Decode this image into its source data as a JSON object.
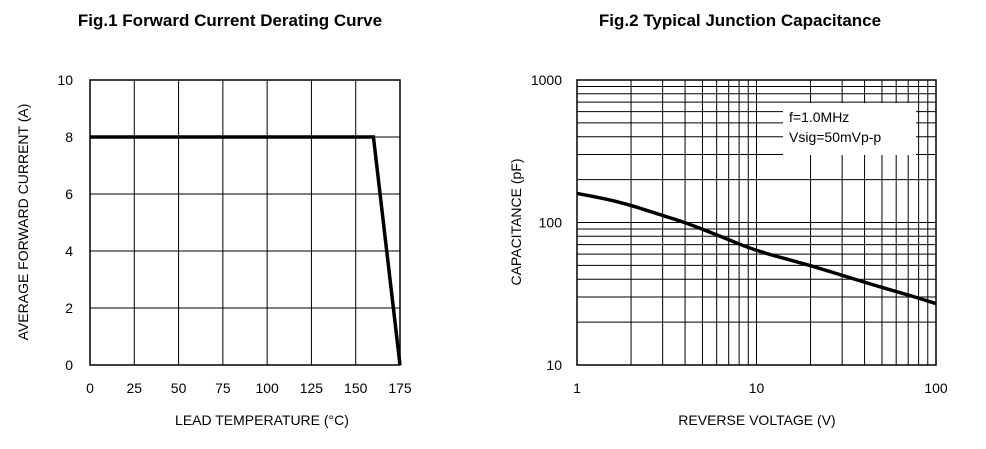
{
  "chart_data": [
    {
      "type": "line",
      "title": "Fig.1 Forward Current Derating Curve",
      "xlabel": "LEAD TEMPERATURE (°C)",
      "ylabel": "AVERAGE FORWARD CURRENT (A)",
      "xlim": [
        0,
        175
      ],
      "ylim": [
        0,
        10
      ],
      "xticks": [
        "0",
        "25",
        "50",
        "75",
        "100",
        "125",
        "150",
        "175"
      ],
      "yticks": [
        "0",
        "2",
        "4",
        "6",
        "8",
        "10"
      ],
      "grid": true,
      "series": [
        {
          "x": [
            0,
            160,
            175
          ],
          "y": [
            8,
            8,
            0
          ]
        }
      ],
      "line_color": "#000000"
    },
    {
      "type": "line",
      "title": "Fig.2 Typical Junction Capacitance",
      "xlabel": "REVERSE VOLTAGE (V)",
      "ylabel": "CAPACITANCE (pF)",
      "xscale": "log",
      "yscale": "log",
      "xlim": [
        1,
        100
      ],
      "ylim": [
        10,
        1000
      ],
      "xticks": [
        "1",
        "10",
        "100"
      ],
      "yticks": [
        "10",
        "100",
        "1000"
      ],
      "grid": true,
      "annotations": [
        "f=1.0MHz",
        "Vsig=50mVp-p"
      ],
      "series": [
        {
          "x": [
            1,
            1.5,
            2,
            3,
            4,
            6,
            10,
            20,
            40,
            70,
            100
          ],
          "y": [
            160,
            145,
            132,
            112,
            100,
            82,
            63,
            50,
            38,
            31,
            27
          ]
        }
      ],
      "line_color": "#000000"
    }
  ]
}
